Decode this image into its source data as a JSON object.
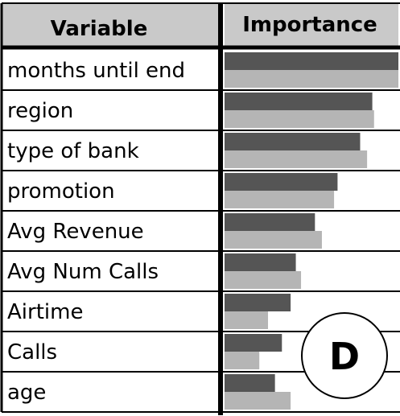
{
  "chart_data": {
    "type": "bar",
    "headers": {
      "variable": "Variable",
      "importance": "Importance"
    },
    "categories": [
      "months until end",
      "region",
      "type of bank",
      "promotion",
      "Avg Revenue",
      "Avg Num Calls",
      "Airtime",
      "Calls",
      "age"
    ],
    "series": [
      {
        "color": "#555555",
        "values": [
          1.0,
          0.85,
          0.78,
          0.65,
          0.52,
          0.41,
          0.38,
          0.33,
          0.29
        ]
      },
      {
        "color": "#b5b5b5",
        "values": [
          1.0,
          0.86,
          0.82,
          0.63,
          0.56,
          0.44,
          0.25,
          0.2,
          0.38
        ]
      }
    ],
    "ylim": [
      0,
      1
    ],
    "badge": "D"
  },
  "colors": {
    "header_bg": "#c9c9c9",
    "grid_line": "#000000",
    "series_dark": "#555555",
    "series_light": "#b5b5b5"
  }
}
